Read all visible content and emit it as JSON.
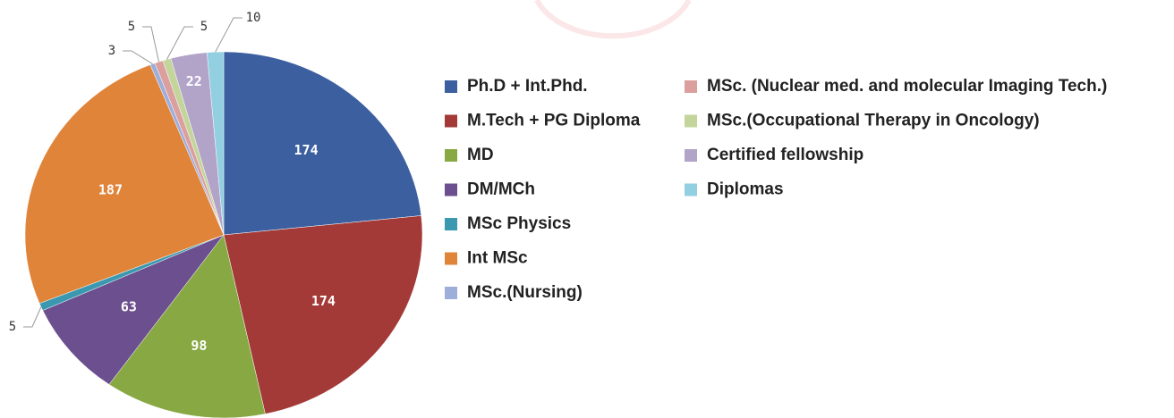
{
  "chart_data": {
    "type": "pie",
    "categories": [
      "Ph.D + Int.Phd.",
      "M.Tech + PG Diploma",
      "MD",
      "DM/MCh",
      "MSc Physics",
      "Int MSc",
      "MSc.(Nursing)",
      "MSc. (Nuclear med. and molecular Imaging Tech.)",
      "MSc.(Occupational Therapy in Oncology)",
      "Certified fellowship",
      "Diplomas"
    ],
    "values": [
      174,
      174,
      98,
      63,
      5,
      187,
      3,
      5,
      5,
      22,
      10
    ],
    "colors": [
      "#3c5fa0",
      "#a33a37",
      "#87a843",
      "#6c4f8e",
      "#3a98b0",
      "#e0843a",
      "#9eaedb",
      "#dba09e",
      "#c3d59b",
      "#b2a3c9",
      "#92cfe0"
    ]
  }
}
